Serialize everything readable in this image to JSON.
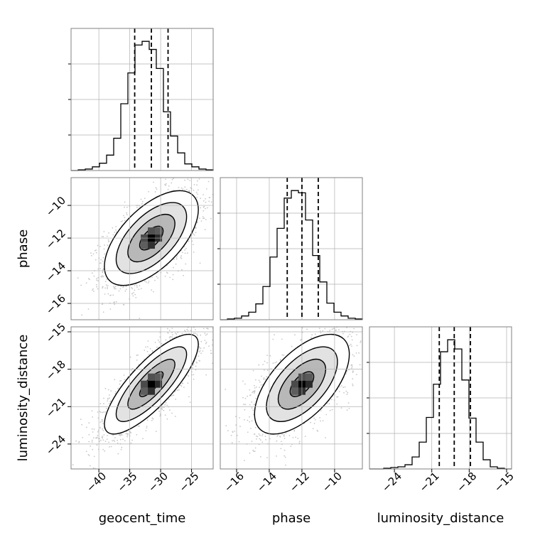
{
  "chart_data": {
    "type": "corner",
    "parameters": [
      "geocent_time",
      "phase",
      "luminosity_distance"
    ],
    "ranges": {
      "geocent_time": [
        -44.5,
        -21.5
      ],
      "phase": [
        -17.0,
        -8.3
      ],
      "luminosity_distance": [
        -26.0,
        -14.6
      ]
    },
    "ticks": {
      "geocent_time": [
        -40,
        -35,
        -30,
        -25
      ],
      "phase": [
        -16,
        -14,
        -12,
        -10
      ],
      "luminosity_distance": [
        -24,
        -21,
        -18,
        -15
      ]
    },
    "tick_labels": {
      "geocent_time": [
        "−40",
        "−35",
        "−30",
        "−25"
      ],
      "phase": [
        "−16",
        "−14",
        "−12",
        "−10"
      ],
      "luminosity_distance": [
        "−24",
        "−21",
        "−18",
        "−15"
      ]
    },
    "quantiles": {
      "geocent_time": [
        -34.2,
        -31.5,
        -28.8
      ],
      "phase": [
        -12.9,
        -12.0,
        -11.0
      ],
      "luminosity_distance": [
        -20.4,
        -19.2,
        -17.9
      ]
    },
    "histograms": {
      "geocent_time": {
        "edges": [
          -44.5,
          -43.35,
          -42.2,
          -41.05,
          -39.9,
          -38.75,
          -37.6,
          -36.45,
          -35.3,
          -34.15,
          -33.0,
          -31.85,
          -30.7,
          -29.55,
          -28.4,
          -27.25,
          -26.1,
          -24.95,
          -23.8,
          -22.65,
          -21.5
        ],
        "counts": [
          0,
          1,
          2,
          5,
          10,
          21,
          44,
          91,
          133,
          171,
          176,
          165,
          139,
          80,
          47,
          24,
          9,
          5,
          2,
          1
        ]
      },
      "phase": {
        "edges": [
          -17.0,
          -16.565,
          -16.13,
          -15.695,
          -15.26,
          -14.825,
          -14.39,
          -13.955,
          -13.52,
          -13.085,
          -12.65,
          -12.215,
          -11.78,
          -11.345,
          -10.91,
          -10.475,
          -10.04,
          -9.605,
          -9.17,
          -8.735,
          -8.3
        ],
        "counts": [
          0,
          1,
          2,
          5,
          10,
          21,
          44,
          83,
          121,
          161,
          171,
          168,
          132,
          85,
          50,
          22,
          10,
          5,
          2,
          1
        ]
      },
      "luminosity_distance": {
        "edges": [
          -26.0,
          -25.43,
          -24.86,
          -24.29,
          -23.72,
          -23.15,
          -22.58,
          -22.01,
          -21.44,
          -20.87,
          -20.3,
          -19.73,
          -19.16,
          -18.59,
          -18.02,
          -17.45,
          -16.88,
          -16.31,
          -15.74,
          -15.17,
          -14.6
        ],
        "counts": [
          0,
          0,
          1,
          2,
          3,
          6,
          17,
          38,
          73,
          120,
          166,
          183,
          170,
          126,
          72,
          38,
          13,
          3,
          1,
          0
        ]
      }
    },
    "pairs": [
      {
        "x": "geocent_time",
        "y": "phase",
        "mean": [
          -31.5,
          -12.0
        ],
        "sd": [
          3.8,
          1.45
        ],
        "rho": 0.6
      },
      {
        "x": "geocent_time",
        "y": "luminosity_distance",
        "mean": [
          -31.5,
          -19.2
        ],
        "sd": [
          3.8,
          2.0
        ],
        "rho": 0.8
      },
      {
        "x": "phase",
        "y": "luminosity_distance",
        "mean": [
          -12.0,
          -19.2
        ],
        "sd": [
          1.45,
          2.0
        ],
        "rho": 0.6
      }
    ],
    "contour_levels_sigma": [
      0.5,
      1.0,
      1.5,
      2.0
    ],
    "grid": true,
    "colors": {
      "hist": "#000000",
      "scatter": "#c8c8c8",
      "grid": "#b0b0b0",
      "frame": "#808080"
    }
  }
}
